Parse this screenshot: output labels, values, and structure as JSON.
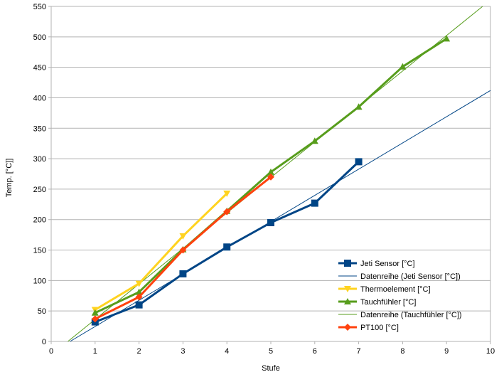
{
  "chart_data": {
    "type": "line",
    "xlabel": "Stufe",
    "ylabel": "Temp. [°C]]",
    "xlim": [
      0,
      10
    ],
    "ylim": [
      0,
      550
    ],
    "x_ticks": [
      "0",
      "1",
      "2",
      "3",
      "4",
      "5",
      "6",
      "7",
      "8",
      "9",
      "10"
    ],
    "y_ticks": [
      "0",
      "50",
      "100",
      "150",
      "200",
      "250",
      "300",
      "350",
      "400",
      "450",
      "500",
      "550"
    ],
    "grid": "horizontal",
    "legend_position": "bottom-right",
    "series": [
      {
        "name": "Jeti Sensor [°C]",
        "kind": "marker-line",
        "marker": "square",
        "color": "#004586",
        "x": [
          1,
          2,
          3,
          4,
          5,
          6,
          7
        ],
        "y": [
          32,
          60,
          111,
          155,
          195,
          227,
          295
        ]
      },
      {
        "name": "Datenreihe (Jeti Sensor [°C])",
        "kind": "trendline",
        "color": "#004586",
        "x": [
          0.43,
          10
        ],
        "y": [
          0,
          412
        ]
      },
      {
        "name": "Thermoelement [°C]",
        "kind": "marker-line",
        "marker": "triangle-down",
        "color": "#ffd320",
        "x": [
          1,
          2,
          3,
          4
        ],
        "y": [
          52,
          95,
          173,
          243
        ]
      },
      {
        "name": "Tauchfühler [°C]",
        "kind": "marker-line",
        "marker": "triangle-up",
        "color": "#579d1c",
        "x": [
          1,
          2,
          3,
          4,
          5,
          6,
          7,
          8,
          9
        ],
        "y": [
          47,
          81,
          151,
          214,
          278,
          329,
          385,
          451,
          497
        ]
      },
      {
        "name": "Datenreihe (Tauchfühler [°C])",
        "kind": "trendline",
        "color": "#579d1c",
        "x": [
          0.38,
          9.82
        ],
        "y": [
          0,
          550
        ]
      },
      {
        "name": "PT100 [°C]",
        "kind": "marker-line",
        "marker": "diamond",
        "color": "#ff420e",
        "x": [
          1,
          2,
          3,
          4,
          5
        ],
        "y": [
          37,
          73,
          150,
          213,
          270
        ]
      }
    ]
  }
}
